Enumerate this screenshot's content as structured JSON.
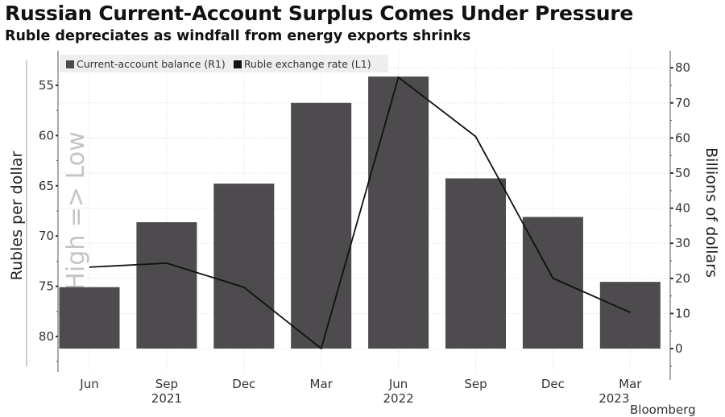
{
  "chart_data": {
    "type": "bar+line",
    "title": "Russian Current-Account Surplus Comes Under Pressure",
    "subtitle": "Ruble depreciates as windfall from energy exports shrinks",
    "categories": [
      "Jun",
      "Sep",
      "Dec",
      "Mar",
      "Jun",
      "Sep",
      "Dec",
      "Mar"
    ],
    "year_labels": [
      {
        "index": 1,
        "label": "2021"
      },
      {
        "index": 4,
        "label": "2022"
      },
      {
        "index": 7,
        "label": "2023"
      }
    ],
    "series": [
      {
        "name": "Current-account balance (R1)",
        "type": "bar",
        "axis": "right",
        "color": "#4d4b4d",
        "values": [
          17.5,
          36,
          47,
          70,
          77.5,
          48.5,
          37.5,
          19
        ]
      },
      {
        "name": "Ruble exchange rate (L1)",
        "type": "line",
        "axis": "left",
        "color": "#111111",
        "values": [
          73.1,
          72.7,
          75.1,
          81.2,
          54.2,
          60.1,
          74.2,
          77.6
        ]
      }
    ],
    "left_axis": {
      "label": "Rubles per dollar",
      "inverted": true,
      "range": [
        52.5,
        83.5
      ],
      "ticks": [
        55,
        60,
        65,
        70,
        75,
        80
      ]
    },
    "right_axis": {
      "label": "Billions of dollars",
      "range": [
        -6,
        84
      ],
      "ticks": [
        0,
        10,
        20,
        30,
        40,
        50,
        60,
        70,
        80
      ]
    },
    "watermark": "High => Low",
    "grid": true,
    "legend_position": "top-left",
    "source": "Bloomberg"
  }
}
